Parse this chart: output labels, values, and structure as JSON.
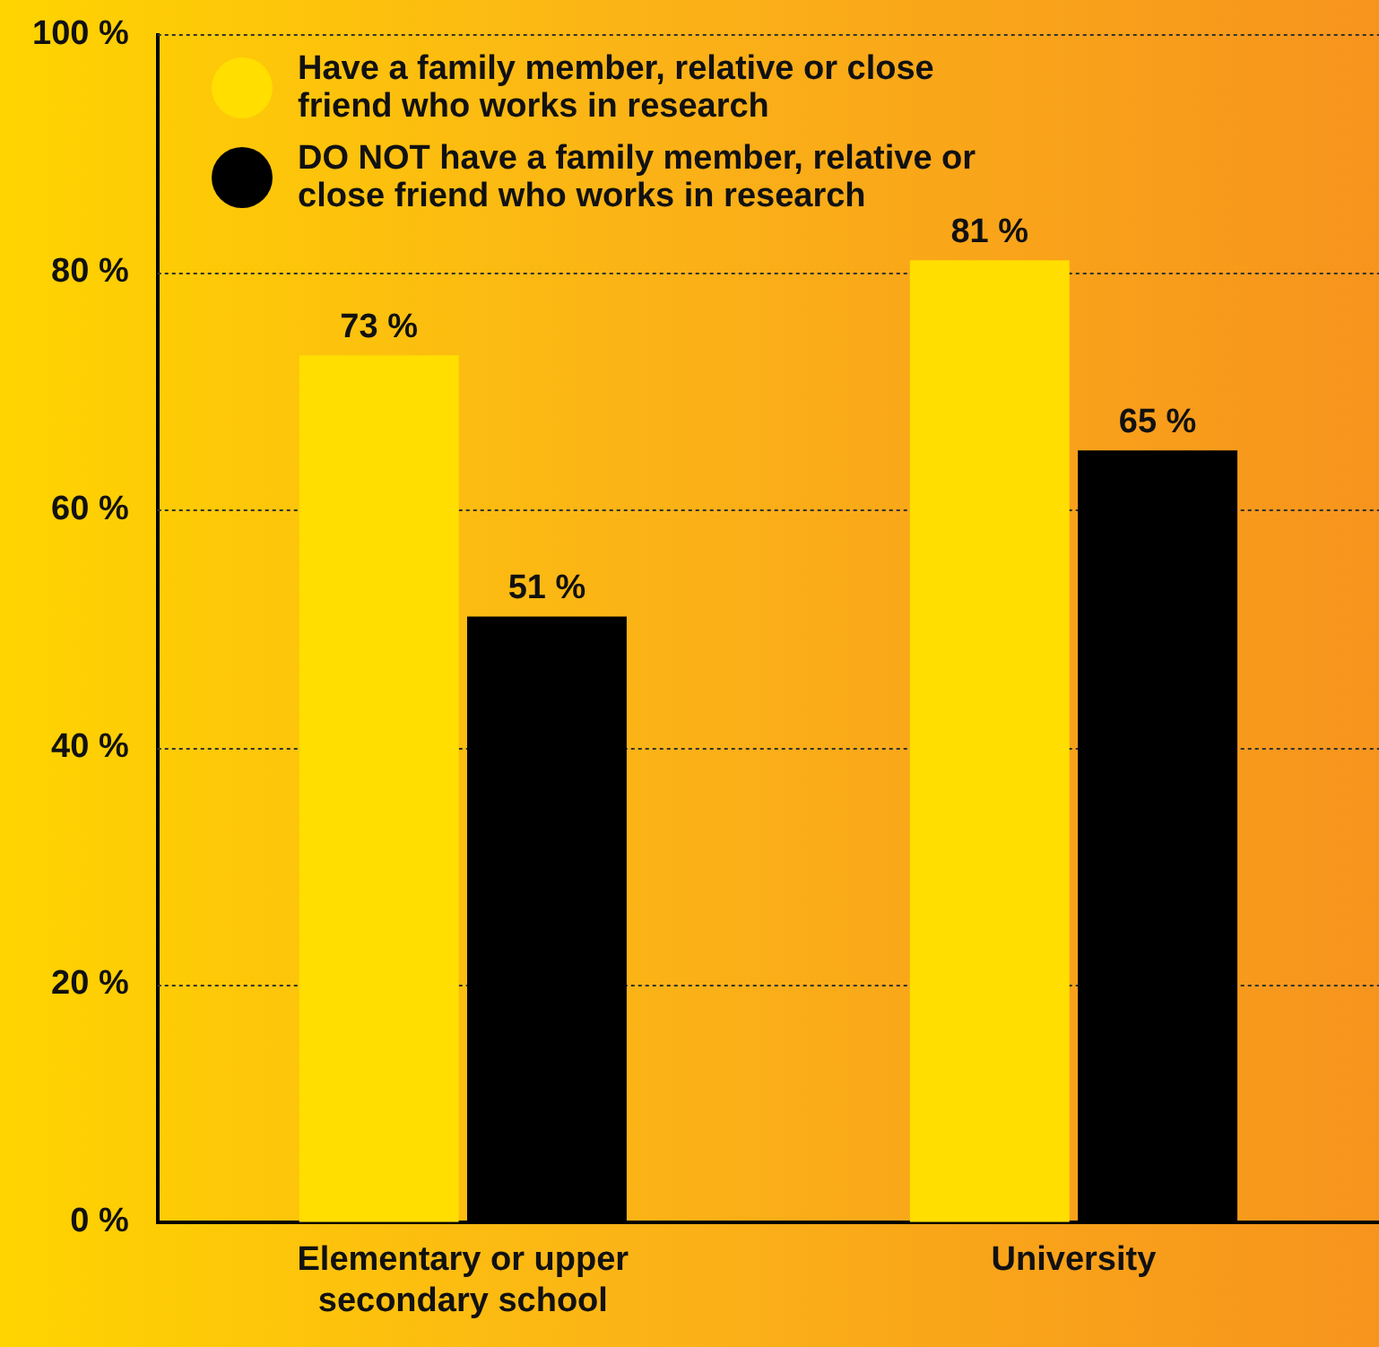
{
  "chart_data": {
    "type": "bar",
    "categories": [
      "Elementary or upper secondary school",
      "University"
    ],
    "series": [
      {
        "name": "Have a family member, relative or close friend who works in research",
        "color": "#ffde00",
        "values": [
          73,
          81
        ],
        "value_labels": [
          "73 %",
          "81 %"
        ]
      },
      {
        "name": "DO NOT have a family member, relative or close friend who works in research",
        "color": "#000000",
        "values": [
          51,
          65
        ],
        "value_labels": [
          "51 %",
          "65 %"
        ]
      }
    ],
    "ylim": [
      0,
      100
    ],
    "yticks": [
      {
        "value": 0,
        "label": "0 %"
      },
      {
        "value": 20,
        "label": "20 %"
      },
      {
        "value": 40,
        "label": "40 %"
      },
      {
        "value": 60,
        "label": "60 %"
      },
      {
        "value": 80,
        "label": "80 %"
      },
      {
        "value": 100,
        "label": "100 %"
      }
    ],
    "grid": "y",
    "legend": "top left"
  }
}
